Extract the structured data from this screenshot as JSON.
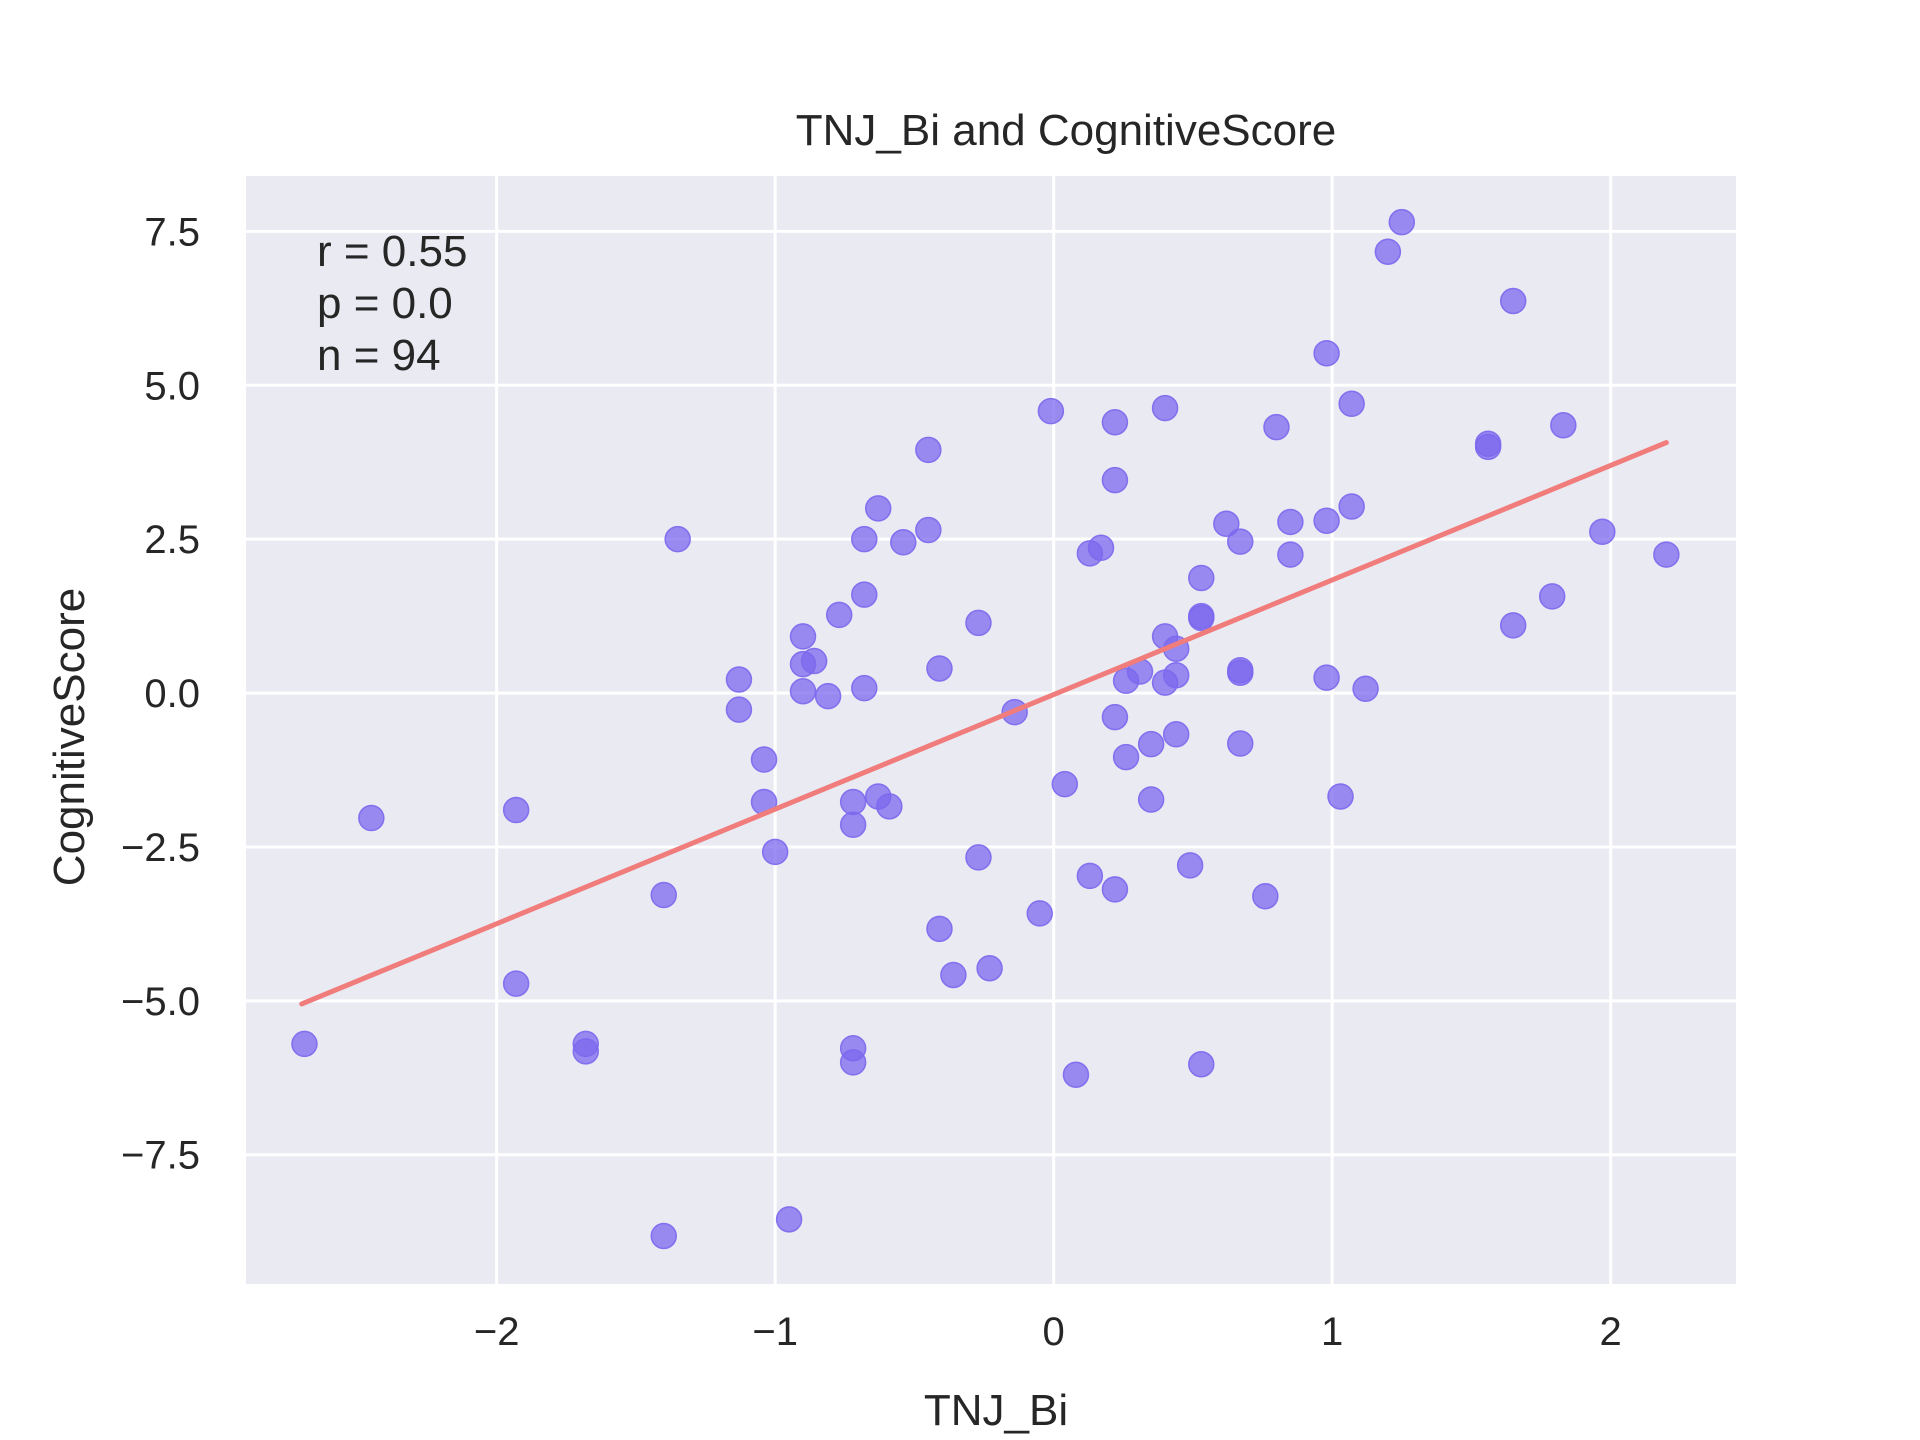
{
  "chart_data": {
    "type": "scatter",
    "title": "TNJ_Bi and CognitiveScore",
    "xlabel": "TNJ_Bi",
    "ylabel": "CognitiveScore",
    "xlim": [
      -2.9,
      2.45
    ],
    "ylim": [
      -9.6,
      8.4
    ],
    "xticks": [
      -2,
      -1,
      0,
      1,
      2
    ],
    "xtick_labels": [
      "−2",
      "−1",
      "0",
      "1",
      "2"
    ],
    "yticks": [
      -7.5,
      -5.0,
      -2.5,
      0.0,
      2.5,
      5.0,
      7.5
    ],
    "ytick_labels": [
      "−7.5",
      "−5.0",
      "−2.5",
      "0.0",
      "2.5",
      "5.0",
      "7.5"
    ],
    "grid": true,
    "background": "#eaeaf2",
    "point_color": "#7b68ee",
    "line_color": "#f07c7c",
    "annotations": [
      "r = 0.55",
      "p = 0.0",
      "n = 94"
    ],
    "regression_line": {
      "x": [
        -2.7,
        2.2
      ],
      "y": [
        -5.05,
        4.07
      ]
    },
    "points": [
      {
        "x": -2.69,
        "y": -5.7
      },
      {
        "x": -2.45,
        "y": -2.03
      },
      {
        "x": -1.93,
        "y": -1.9
      },
      {
        "x": -1.93,
        "y": -4.72
      },
      {
        "x": -1.68,
        "y": -5.7
      },
      {
        "x": -1.68,
        "y": -5.82
      },
      {
        "x": -1.4,
        "y": -3.28
      },
      {
        "x": -1.4,
        "y": -8.82
      },
      {
        "x": -1.35,
        "y": 2.5
      },
      {
        "x": -1.13,
        "y": 0.22
      },
      {
        "x": -1.13,
        "y": -0.27
      },
      {
        "x": -1.04,
        "y": -1.08
      },
      {
        "x": -1.04,
        "y": -1.77
      },
      {
        "x": -1.0,
        "y": -2.58
      },
      {
        "x": -0.95,
        "y": -8.55
      },
      {
        "x": -0.9,
        "y": 0.92
      },
      {
        "x": -0.9,
        "y": 0.47
      },
      {
        "x": -0.9,
        "y": 0.03
      },
      {
        "x": -0.86,
        "y": 0.52
      },
      {
        "x": -0.81,
        "y": -0.05
      },
      {
        "x": -0.77,
        "y": 1.27
      },
      {
        "x": -0.72,
        "y": -1.77
      },
      {
        "x": -0.72,
        "y": -2.14
      },
      {
        "x": -0.72,
        "y": -5.77
      },
      {
        "x": -0.72,
        "y": -6.0
      },
      {
        "x": -0.68,
        "y": 2.5
      },
      {
        "x": -0.68,
        "y": 1.6
      },
      {
        "x": -0.68,
        "y": 0.08
      },
      {
        "x": -0.63,
        "y": 3.0
      },
      {
        "x": -0.63,
        "y": -1.68
      },
      {
        "x": -0.59,
        "y": -1.84
      },
      {
        "x": -0.54,
        "y": 2.45
      },
      {
        "x": -0.45,
        "y": 3.95
      },
      {
        "x": -0.45,
        "y": 2.65
      },
      {
        "x": -0.41,
        "y": 0.4
      },
      {
        "x": -0.41,
        "y": -3.83
      },
      {
        "x": -0.36,
        "y": -4.58
      },
      {
        "x": -0.27,
        "y": 1.14
      },
      {
        "x": -0.27,
        "y": -2.67
      },
      {
        "x": -0.23,
        "y": -4.47
      },
      {
        "x": -0.14,
        "y": -0.31
      },
      {
        "x": -0.05,
        "y": -3.58
      },
      {
        "x": -0.01,
        "y": 4.58
      },
      {
        "x": 0.04,
        "y": -1.48
      },
      {
        "x": 0.08,
        "y": -6.2
      },
      {
        "x": 0.13,
        "y": 2.27
      },
      {
        "x": 0.13,
        "y": -2.97
      },
      {
        "x": 0.17,
        "y": 2.36
      },
      {
        "x": 0.22,
        "y": 4.4
      },
      {
        "x": 0.22,
        "y": 3.46
      },
      {
        "x": 0.22,
        "y": -0.39
      },
      {
        "x": 0.22,
        "y": -3.19
      },
      {
        "x": 0.26,
        "y": 0.2
      },
      {
        "x": 0.26,
        "y": -1.04
      },
      {
        "x": 0.31,
        "y": 0.35
      },
      {
        "x": 0.35,
        "y": -0.83
      },
      {
        "x": 0.35,
        "y": -1.73
      },
      {
        "x": 0.4,
        "y": 4.63
      },
      {
        "x": 0.4,
        "y": 0.92
      },
      {
        "x": 0.4,
        "y": 0.17
      },
      {
        "x": 0.44,
        "y": 0.72
      },
      {
        "x": 0.44,
        "y": 0.29
      },
      {
        "x": 0.44,
        "y": -0.67
      },
      {
        "x": 0.49,
        "y": -2.8
      },
      {
        "x": 0.53,
        "y": 1.87
      },
      {
        "x": 0.53,
        "y": 1.25
      },
      {
        "x": 0.53,
        "y": 1.22
      },
      {
        "x": 0.53,
        "y": -6.03
      },
      {
        "x": 0.62,
        "y": 2.75
      },
      {
        "x": 0.67,
        "y": 2.46
      },
      {
        "x": 0.67,
        "y": 0.37
      },
      {
        "x": 0.67,
        "y": 0.33
      },
      {
        "x": 0.67,
        "y": -0.82
      },
      {
        "x": 0.76,
        "y": -3.3
      },
      {
        "x": 0.8,
        "y": 4.32
      },
      {
        "x": 0.85,
        "y": 2.78
      },
      {
        "x": 0.85,
        "y": 2.25
      },
      {
        "x": 0.98,
        "y": 5.52
      },
      {
        "x": 0.98,
        "y": 2.8
      },
      {
        "x": 0.98,
        "y": 0.25
      },
      {
        "x": 1.03,
        "y": -1.68
      },
      {
        "x": 1.07,
        "y": 4.7
      },
      {
        "x": 1.07,
        "y": 3.03
      },
      {
        "x": 1.12,
        "y": 0.07
      },
      {
        "x": 1.2,
        "y": 7.17
      },
      {
        "x": 1.25,
        "y": 7.65
      },
      {
        "x": 1.56,
        "y": 4.05
      },
      {
        "x": 1.56,
        "y": 4.0
      },
      {
        "x": 1.65,
        "y": 6.37
      },
      {
        "x": 1.65,
        "y": 1.1
      },
      {
        "x": 1.79,
        "y": 1.57
      },
      {
        "x": 1.83,
        "y": 4.35
      },
      {
        "x": 1.97,
        "y": 2.62
      },
      {
        "x": 2.2,
        "y": 2.25
      }
    ]
  }
}
